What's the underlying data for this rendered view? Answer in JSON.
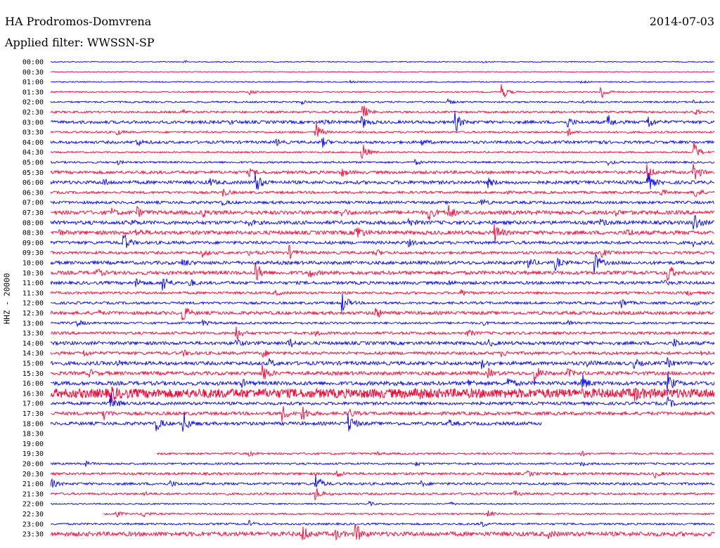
{
  "header": {
    "station": "HA Prodromos-Domvrena",
    "date": "2014-07-03",
    "filter": "Applied filter: WWSSN-SP"
  },
  "chart_data": {
    "type": "line",
    "title": "HA Prodromos-Domvrena",
    "subtitle": "Applied filter: WWSSN-SP",
    "ylabel": "HHZ - 20000",
    "colors": [
      "#0000ff",
      "#ff0033"
    ],
    "grid": false,
    "rows": [
      {
        "label": "00:00",
        "start": 0.0,
        "end": 1.0,
        "amp": 0.7,
        "events": [
          [
            0.2,
            1.8
          ],
          [
            0.65,
            1.5
          ]
        ],
        "noise": false
      },
      {
        "label": "00:30",
        "start": 0.0,
        "end": 1.0,
        "amp": 0.6,
        "events": [],
        "noise": false
      },
      {
        "label": "01:00",
        "start": 0.0,
        "end": 1.0,
        "amp": 0.8,
        "events": [
          [
            0.45,
            2.0
          ],
          [
            0.8,
            2.0
          ]
        ],
        "noise": false
      },
      {
        "label": "01:30",
        "start": 0.0,
        "end": 1.0,
        "amp": 1.0,
        "events": [
          [
            0.3,
            4.0
          ],
          [
            0.68,
            12.0
          ],
          [
            0.83,
            12.0
          ]
        ],
        "noise": false
      },
      {
        "label": "02:00",
        "start": 0.0,
        "end": 1.0,
        "amp": 1.2,
        "events": [
          [
            0.38,
            2.0
          ],
          [
            0.6,
            3.0
          ],
          [
            0.8,
            2.0
          ],
          [
            0.97,
            2.0
          ]
        ],
        "noise": false
      },
      {
        "label": "02:30",
        "start": 0.0,
        "end": 1.0,
        "amp": 1.5,
        "events": [
          [
            0.2,
            2.5
          ],
          [
            0.47,
            12.0
          ],
          [
            0.97,
            4.0
          ]
        ],
        "noise": false
      },
      {
        "label": "03:00",
        "start": 0.0,
        "end": 1.0,
        "amp": 2.2,
        "events": [
          [
            0.27,
            2.5
          ],
          [
            0.41,
            4.0
          ],
          [
            0.47,
            8.0
          ],
          [
            0.61,
            14.0
          ],
          [
            0.78,
            7.0
          ],
          [
            0.84,
            10.0
          ],
          [
            0.9,
            10.0
          ]
        ],
        "noise": false
      },
      {
        "label": "03:30",
        "start": 0.0,
        "end": 1.0,
        "amp": 1.4,
        "events": [
          [
            0.1,
            4.0
          ],
          [
            0.4,
            14.0
          ],
          [
            0.78,
            5.0
          ]
        ],
        "noise": false
      },
      {
        "label": "04:00",
        "start": 0.0,
        "end": 1.0,
        "amp": 2.0,
        "events": [
          [
            0.13,
            5.0
          ],
          [
            0.34,
            4.0
          ],
          [
            0.41,
            6.0
          ],
          [
            0.56,
            4.0
          ],
          [
            0.82,
            4.0
          ]
        ],
        "noise": false
      },
      {
        "label": "04:30",
        "start": 0.0,
        "end": 1.0,
        "amp": 1.2,
        "events": [
          [
            0.47,
            14.0
          ],
          [
            0.97,
            14.0
          ]
        ],
        "noise": false
      },
      {
        "label": "05:00",
        "start": 0.0,
        "end": 1.0,
        "amp": 1.4,
        "events": [
          [
            0.1,
            3.0
          ],
          [
            0.55,
            3.0
          ],
          [
            0.84,
            4.0
          ]
        ],
        "noise": false
      },
      {
        "label": "05:30",
        "start": 0.0,
        "end": 1.0,
        "amp": 2.2,
        "events": [
          [
            0.3,
            4.0
          ],
          [
            0.44,
            5.0
          ],
          [
            0.9,
            10.0
          ],
          [
            0.97,
            14.0
          ]
        ],
        "noise": false
      },
      {
        "label": "06:00",
        "start": 0.0,
        "end": 1.0,
        "amp": 2.4,
        "events": [
          [
            0.08,
            4.0
          ],
          [
            0.24,
            5.0
          ],
          [
            0.31,
            14.0
          ],
          [
            0.66,
            6.0
          ],
          [
            0.9,
            14.0
          ]
        ],
        "noise": false
      },
      {
        "label": "06:30",
        "start": 0.0,
        "end": 1.0,
        "amp": 1.8,
        "events": [
          [
            0.26,
            6.0
          ],
          [
            0.68,
            3.0
          ],
          [
            0.92,
            4.0
          ],
          [
            0.97,
            10.0
          ]
        ],
        "noise": false
      },
      {
        "label": "07:00",
        "start": 0.0,
        "end": 1.0,
        "amp": 2.0,
        "events": [
          [
            0.26,
            3.0
          ],
          [
            0.65,
            4.0
          ]
        ],
        "noise": false
      },
      {
        "label": "07:30",
        "start": 0.0,
        "end": 1.0,
        "amp": 2.8,
        "events": [
          [
            0.09,
            6.0
          ],
          [
            0.13,
            7.0
          ],
          [
            0.23,
            5.0
          ],
          [
            0.44,
            5.0
          ],
          [
            0.57,
            10.0
          ],
          [
            0.6,
            10.0
          ],
          [
            0.85,
            4.0
          ]
        ],
        "noise": false
      },
      {
        "label": "08:00",
        "start": 0.0,
        "end": 1.0,
        "amp": 2.6,
        "events": [
          [
            0.12,
            4.0
          ],
          [
            0.3,
            3.0
          ],
          [
            0.54,
            5.0
          ],
          [
            0.83,
            4.0
          ],
          [
            0.97,
            14.0
          ]
        ],
        "noise": false
      },
      {
        "label": "08:30",
        "start": 0.0,
        "end": 1.0,
        "amp": 2.8,
        "events": [
          [
            0.01,
            5.0
          ],
          [
            0.13,
            4.0
          ],
          [
            0.46,
            14.0
          ],
          [
            0.67,
            14.0
          ],
          [
            0.87,
            5.0
          ]
        ],
        "noise": false
      },
      {
        "label": "09:00",
        "start": 0.0,
        "end": 1.0,
        "amp": 2.2,
        "events": [
          [
            0.11,
            14.0
          ],
          [
            0.54,
            4.0
          ],
          [
            0.97,
            4.0
          ]
        ],
        "noise": false
      },
      {
        "label": "09:30",
        "start": 0.0,
        "end": 1.0,
        "amp": 2.0,
        "events": [
          [
            0.23,
            5.0
          ],
          [
            0.3,
            4.0
          ],
          [
            0.36,
            9.0
          ],
          [
            0.49,
            5.0
          ],
          [
            0.83,
            6.0
          ]
        ],
        "noise": false
      },
      {
        "label": "10:00",
        "start": 0.0,
        "end": 1.0,
        "amp": 2.4,
        "events": [
          [
            0.2,
            6.0
          ],
          [
            0.72,
            8.0
          ],
          [
            0.76,
            10.0
          ],
          [
            0.82,
            14.0
          ]
        ],
        "noise": false
      },
      {
        "label": "10:30",
        "start": 0.0,
        "end": 1.0,
        "amp": 2.6,
        "events": [
          [
            0.07,
            5.0
          ],
          [
            0.31,
            14.0
          ],
          [
            0.39,
            6.0
          ],
          [
            0.93,
            14.0
          ]
        ],
        "noise": false
      },
      {
        "label": "11:00",
        "start": 0.0,
        "end": 1.0,
        "amp": 2.2,
        "events": [
          [
            0.13,
            7.0
          ],
          [
            0.17,
            12.0
          ],
          [
            0.21,
            5.0
          ],
          [
            0.6,
            3.0
          ],
          [
            0.92,
            4.0
          ]
        ],
        "noise": false
      },
      {
        "label": "11:30",
        "start": 0.0,
        "end": 1.0,
        "amp": 1.8,
        "events": [
          [
            0.34,
            3.0
          ],
          [
            0.62,
            4.0
          ],
          [
            0.96,
            3.0
          ]
        ],
        "noise": false
      },
      {
        "label": "12:00",
        "start": 0.0,
        "end": 1.0,
        "amp": 1.8,
        "events": [
          [
            0.44,
            14.0
          ],
          [
            0.86,
            7.0
          ],
          [
            0.97,
            3.0
          ]
        ],
        "noise": false
      },
      {
        "label": "12:30",
        "start": 0.0,
        "end": 1.0,
        "amp": 2.4,
        "events": [
          [
            0.07,
            4.0
          ],
          [
            0.2,
            12.0
          ],
          [
            0.49,
            8.0
          ]
        ],
        "noise": false
      },
      {
        "label": "13:00",
        "start": 0.0,
        "end": 1.0,
        "amp": 1.6,
        "events": [
          [
            0.04,
            5.0
          ],
          [
            0.23,
            4.0
          ],
          [
            0.65,
            3.0
          ],
          [
            0.78,
            3.0
          ]
        ],
        "noise": false
      },
      {
        "label": "13:30",
        "start": 0.0,
        "end": 1.0,
        "amp": 2.0,
        "events": [
          [
            0.28,
            10.0
          ],
          [
            0.4,
            4.0
          ],
          [
            0.63,
            4.0
          ]
        ],
        "noise": false
      },
      {
        "label": "14:00",
        "start": 0.0,
        "end": 1.0,
        "amp": 2.4,
        "events": [
          [
            0.28,
            5.0
          ],
          [
            0.36,
            7.0
          ],
          [
            0.66,
            4.0
          ],
          [
            0.94,
            5.0
          ]
        ],
        "noise": false
      },
      {
        "label": "14:30",
        "start": 0.0,
        "end": 1.0,
        "amp": 2.2,
        "events": [
          [
            0.05,
            4.0
          ],
          [
            0.2,
            4.0
          ],
          [
            0.32,
            5.0
          ],
          [
            0.68,
            4.0
          ],
          [
            0.98,
            4.0
          ]
        ],
        "noise": false
      },
      {
        "label": "15:00",
        "start": 0.0,
        "end": 1.0,
        "amp": 2.6,
        "events": [
          [
            0.1,
            4.0
          ],
          [
            0.33,
            5.0
          ],
          [
            0.65,
            6.0
          ],
          [
            0.81,
            4.0
          ],
          [
            0.88,
            5.0
          ],
          [
            0.93,
            5.0
          ]
        ],
        "noise": false
      },
      {
        "label": "15:30",
        "start": 0.0,
        "end": 1.0,
        "amp": 2.6,
        "events": [
          [
            0.06,
            4.0
          ],
          [
            0.32,
            14.0
          ],
          [
            0.66,
            6.0
          ],
          [
            0.73,
            12.0
          ],
          [
            0.78,
            5.0
          ]
        ],
        "noise": false
      },
      {
        "label": "16:00",
        "start": 0.0,
        "end": 1.0,
        "amp": 2.8,
        "events": [
          [
            0.29,
            4.0
          ],
          [
            0.52,
            4.0
          ],
          [
            0.63,
            5.0
          ],
          [
            0.69,
            7.0
          ],
          [
            0.8,
            14.0
          ],
          [
            0.93,
            14.0
          ]
        ],
        "noise": false
      },
      {
        "label": "16:30",
        "start": 0.0,
        "end": 1.0,
        "amp": 6.5,
        "events": [
          [
            0.09,
            9.0
          ],
          [
            0.55,
            6.0
          ],
          [
            0.88,
            6.0
          ]
        ],
        "noise": true
      },
      {
        "label": "17:00",
        "start": 0.0,
        "end": 1.0,
        "amp": 2.2,
        "events": [
          [
            0.09,
            16.0
          ],
          [
            0.93,
            8.0
          ]
        ],
        "noise": false
      },
      {
        "label": "17:30",
        "start": 0.0,
        "end": 1.0,
        "amp": 2.4,
        "events": [
          [
            0.08,
            8.0
          ],
          [
            0.35,
            10.0
          ],
          [
            0.38,
            12.0
          ],
          [
            0.45,
            6.0
          ]
        ],
        "noise": false
      },
      {
        "label": "18:00",
        "start": 0.0,
        "end": 0.74,
        "amp": 2.4,
        "events": [
          [
            0.16,
            10.0
          ],
          [
            0.2,
            16.0
          ],
          [
            0.45,
            14.0
          ],
          [
            0.6,
            4.0
          ]
        ],
        "noise": false
      },
      {
        "label": "18:30",
        "start": 0.0,
        "end": 0.0,
        "amp": 0.0,
        "events": [],
        "noise": false
      },
      {
        "label": "19:00",
        "start": 0.0,
        "end": 0.0,
        "amp": 0.0,
        "events": [],
        "noise": false
      },
      {
        "label": "19:30",
        "start": 0.16,
        "end": 1.0,
        "amp": 1.4,
        "events": [
          [
            0.3,
            3.0
          ],
          [
            0.49,
            3.0
          ],
          [
            0.8,
            3.0
          ]
        ],
        "noise": false
      },
      {
        "label": "20:00",
        "start": 0.0,
        "end": 1.0,
        "amp": 1.4,
        "events": [
          [
            0.05,
            5.0
          ],
          [
            0.55,
            3.0
          ],
          [
            0.8,
            3.0
          ]
        ],
        "noise": false
      },
      {
        "label": "20:30",
        "start": 0.0,
        "end": 1.0,
        "amp": 1.8,
        "events": [
          [
            0.43,
            6.0
          ],
          [
            0.72,
            3.0
          ],
          [
            0.91,
            5.0
          ]
        ],
        "noise": false
      },
      {
        "label": "21:00",
        "start": 0.0,
        "end": 1.0,
        "amp": 1.8,
        "events": [
          [
            0.0,
            8.0
          ],
          [
            0.18,
            5.0
          ],
          [
            0.4,
            14.0
          ],
          [
            0.56,
            3.0
          ]
        ],
        "noise": false
      },
      {
        "label": "21:30",
        "start": 0.0,
        "end": 1.0,
        "amp": 1.6,
        "events": [
          [
            0.14,
            3.0
          ],
          [
            0.4,
            10.0
          ],
          [
            0.7,
            3.0
          ]
        ],
        "noise": false
      },
      {
        "label": "22:00",
        "start": 0.0,
        "end": 1.0,
        "amp": 1.0,
        "events": [
          [
            0.48,
            3.0
          ],
          [
            0.6,
            3.0
          ]
        ],
        "noise": false
      },
      {
        "label": "22:30",
        "start": 0.08,
        "end": 1.0,
        "amp": 1.2,
        "events": [
          [
            0.1,
            4.0
          ],
          [
            0.14,
            5.0
          ],
          [
            0.66,
            4.0
          ]
        ],
        "noise": false
      },
      {
        "label": "23:00",
        "start": 0.0,
        "end": 1.0,
        "amp": 1.4,
        "events": [
          [
            0.3,
            4.0
          ],
          [
            0.65,
            4.0
          ]
        ],
        "noise": false
      },
      {
        "label": "23:30",
        "start": 0.0,
        "end": 1.0,
        "amp": 3.2,
        "events": [
          [
            0.38,
            12.0
          ],
          [
            0.43,
            6.0
          ],
          [
            0.46,
            14.0
          ],
          [
            0.75,
            4.0
          ]
        ],
        "noise": false
      }
    ]
  }
}
